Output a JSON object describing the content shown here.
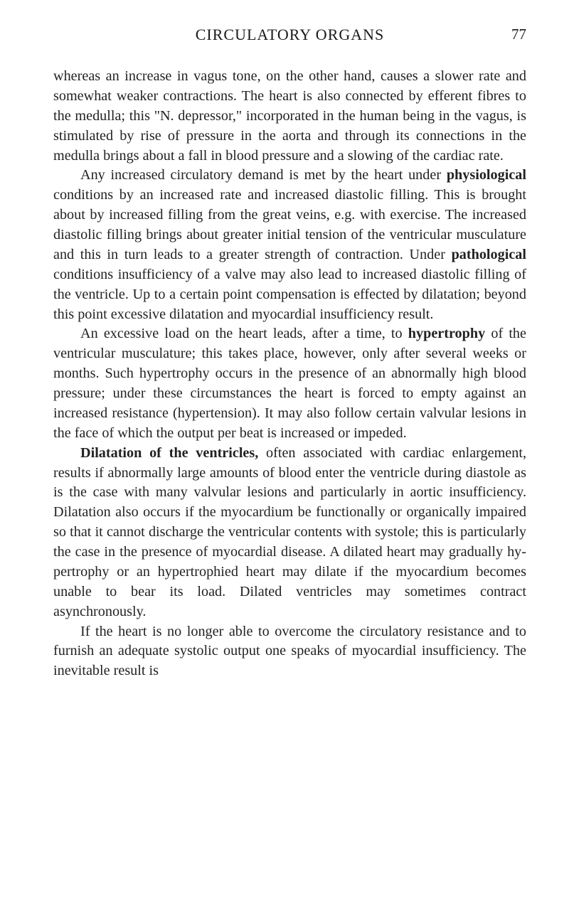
{
  "header": {
    "title": "CIRCULATORY ORGANS",
    "pageNumber": "77"
  },
  "paragraphs": {
    "p1_a": "whereas an increase in vagus tone, on the other hand, causes a slower rate and somewhat weaker contractions. The heart is also connected by efferent fibres to the medulla; this \"N. depressor,\" incorporated in the human being in the vagus, is stimulated by rise of pressure in the aorta and through its connections in the medulla brings about a fall in blood pressure and a slowing of the cardiac rate.",
    "p2_a": "Any increased circulatory demand is met by the heart under ",
    "p2_bold1": "physiological",
    "p2_b": " conditions by an increased rate and in­creased diastolic filling. This is brought about by increased filling from the great veins, e.g. with exercise. The increased diastolic filling brings about greater initial tension of the ventricular musculature and this in turn leads to a greater strength of contraction. Under ",
    "p2_bold2": "pathological",
    "p2_c": " conditions insuffi­ciency of a valve may also lead to increased diastolic filling of the ventricle. Up to a certain point compensation is effected by dilatation; beyond this point excessive dilatation and myocardial insufficiency result.",
    "p3_a": "An excessive load on the heart leads, after a time, to ",
    "p3_bold1": "hypertrophy",
    "p3_b": " of the ventricular musculature; this takes place, however, only after several weeks or months. Such hyper­trophy occurs in the presence of an abnormally high blood pressure; under these circumstances the heart is forced to empty against an increased resistance (hypertension). It may also follow certain valvular lesions in the face of which the output per beat is increased or impeded.",
    "p4_bold1": "Dilatation of the ventricles,",
    "p4_a": " often associated with cardiac enlargement, results if abnormally large amounts of blood enter the ventricle during diastole as is the case with many valvular lesions and particularly in aortic insufficiency. Dila­tation also occurs if the myocardium be functionally or organi­cally impaired so that it cannot discharge the ventricular con­tents with systole; this is particularly the case in the presence of myocardial disease. A dilated heart may gradually hy­pertrophy or an hypertrophied heart may dilate if the myo­cardium becomes unable to bear its load. Dilated ventricles may sometimes contract asynchronously.",
    "p5_a": "If the heart is no longer able to overcome the circulatory resistance and to furnish an adequate systolic output one speaks of myocardial insufficiency. The inevitable result is"
  }
}
